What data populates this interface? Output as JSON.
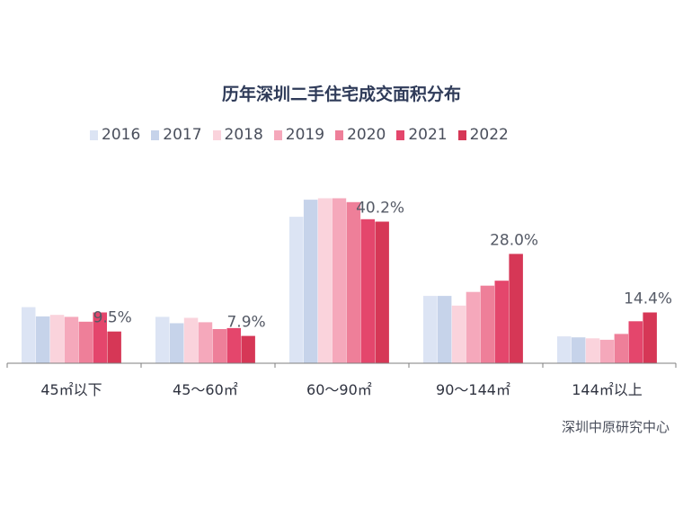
{
  "chart_data": {
    "type": "bar",
    "title": "历年深圳二手住宅成交面积分布",
    "categories": [
      "45㎡以下",
      "45～60㎡",
      "60～90㎡",
      "90～144㎡",
      "144㎡以上"
    ],
    "series": [
      {
        "name": "2016",
        "color": "#dce4f4",
        "values": [
          11.5,
          9.5,
          30.0,
          13.8,
          5.5
        ]
      },
      {
        "name": "2017",
        "color": "#c6d3ea",
        "values": [
          9.6,
          8.2,
          33.5,
          13.8,
          5.3
        ]
      },
      {
        "name": "2018",
        "color": "#fad3dc",
        "values": [
          9.9,
          9.3,
          33.8,
          11.8,
          5.1
        ]
      },
      {
        "name": "2019",
        "color": "#f5a8bb",
        "values": [
          9.5,
          8.4,
          33.8,
          14.6,
          4.8
        ]
      },
      {
        "name": "2020",
        "color": "#ee7f99",
        "values": [
          8.5,
          7.0,
          33.0,
          15.9,
          6.0
        ]
      },
      {
        "name": "2021",
        "color": "#e4466c",
        "values": [
          10.4,
          7.2,
          29.5,
          16.9,
          8.6
        ]
      },
      {
        "name": "2022",
        "color": "#d63756",
        "values": [
          6.5,
          5.6,
          29.0,
          22.4,
          10.4
        ]
      }
    ],
    "annotations": [
      {
        "category": "45㎡以下",
        "text": "9.5%"
      },
      {
        "category": "45～60㎡",
        "text": "7.9%"
      },
      {
        "category": "60～90㎡",
        "text": "40.2%"
      },
      {
        "category": "90～144㎡",
        "text": "28.0%"
      },
      {
        "category": "144㎡以上",
        "text": "14.4%"
      }
    ],
    "legend_position": "top",
    "grid": false,
    "source": "深圳中原研究中心"
  }
}
